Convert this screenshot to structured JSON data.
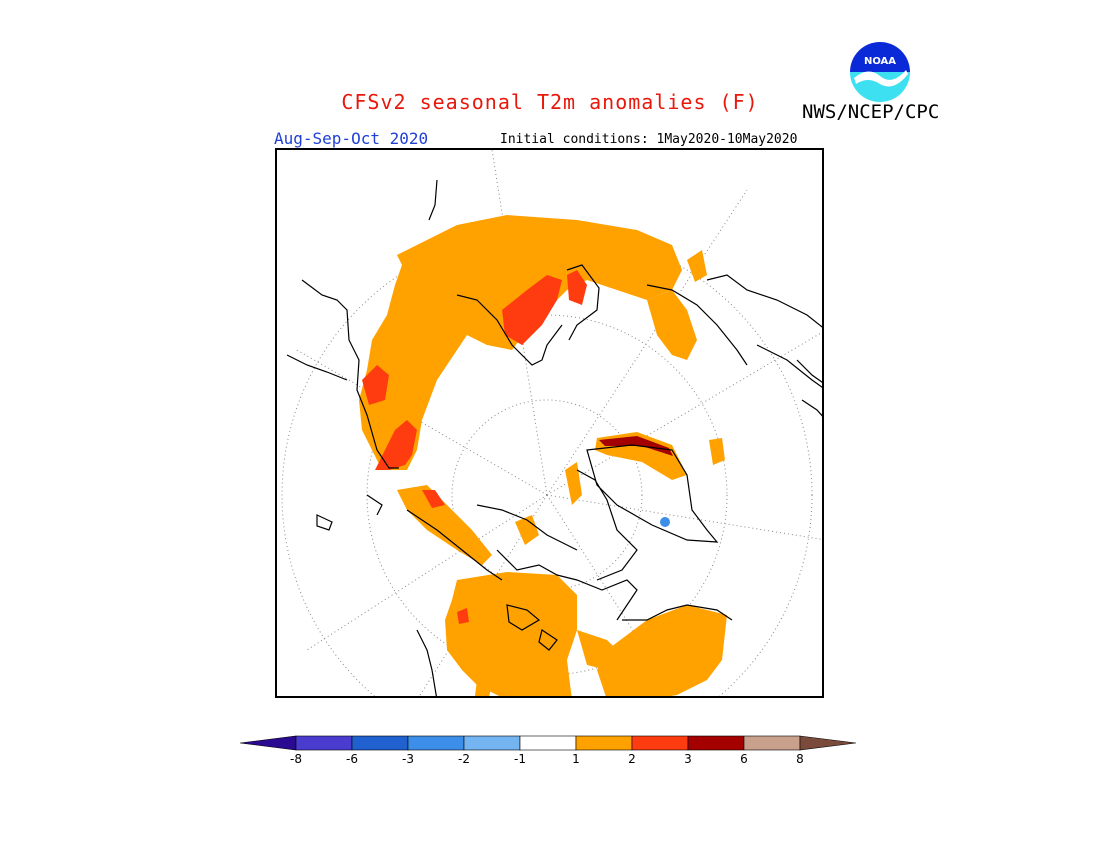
{
  "header": {
    "title": "CFSv2 seasonal T2m anomalies (F)",
    "period": "Aug-Sep-Oct 2020",
    "initial_conditions": "Initial conditions: 1May2020-10May2020",
    "agency": "NWS/NCEP/CPC",
    "logo_text": "NOAA"
  },
  "legend": {
    "ticks": [
      "-8",
      "-6",
      "-3",
      "-2",
      "-1",
      "1",
      "2",
      "3",
      "6",
      "8"
    ],
    "colors": [
      "#2a0a90",
      "#4a3ccf",
      "#2060cf",
      "#3d8ee8",
      "#74b4f0",
      "#ffffff",
      "#ffa200",
      "#ff3c0f",
      "#a40000",
      "#c8a08c",
      "#7a4a3a"
    ]
  },
  "map": {
    "projection": "north-polar-stereographic",
    "variable": "T2m anomaly",
    "units": "F"
  }
}
